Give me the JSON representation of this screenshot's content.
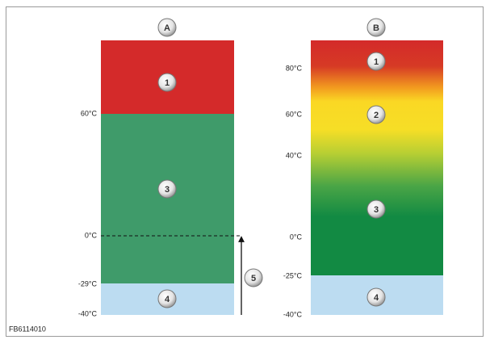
{
  "panel_a": {
    "label": "A",
    "zones": [
      "1",
      "3",
      "4"
    ],
    "callout": "5",
    "temperatures": [
      "60°C",
      "0°C",
      "-29°C",
      "-40°C"
    ]
  },
  "panel_b": {
    "label": "B",
    "zones": [
      "1",
      "2",
      "3",
      "4"
    ],
    "temperatures": [
      "80°C",
      "60°C",
      "40°C",
      "0°C",
      "-25°C",
      "-40°C"
    ]
  },
  "figure_id": "FB6114010"
}
